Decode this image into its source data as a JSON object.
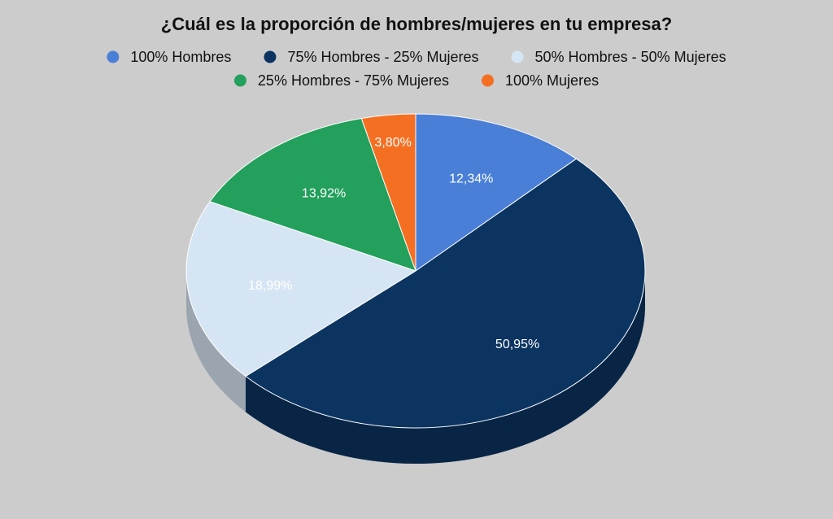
{
  "chart_data": {
    "type": "pie",
    "style": "3d",
    "title": "¿Cuál es la proporción de hombres/mujeres en tu empresa?",
    "legend_position": "top",
    "slices": [
      {
        "label": "100% Hombres",
        "value": 12.34,
        "value_label": "12,34%",
        "color": "#4a7fd8",
        "label_color": "#ffffff"
      },
      {
        "label": "75% Hombres - 25% Mujeres",
        "value": 50.95,
        "value_label": "50,95%",
        "color": "#0b3461",
        "label_color": "#ffffff"
      },
      {
        "label": "50% Hombres - 50% Mujeres",
        "value": 18.99,
        "value_label": "18,99%",
        "color": "#d6e5f3",
        "label_color": "#ffffff"
      },
      {
        "label": "25% Hombres - 75% Mujeres",
        "value": 13.92,
        "value_label": "13,92%",
        "color": "#22a05c",
        "label_color": "#ffffff"
      },
      {
        "label": "100% Mujeres",
        "value": 3.8,
        "value_label": "3,80%",
        "color": "#f56f22",
        "label_color": "#ffffff"
      }
    ]
  }
}
